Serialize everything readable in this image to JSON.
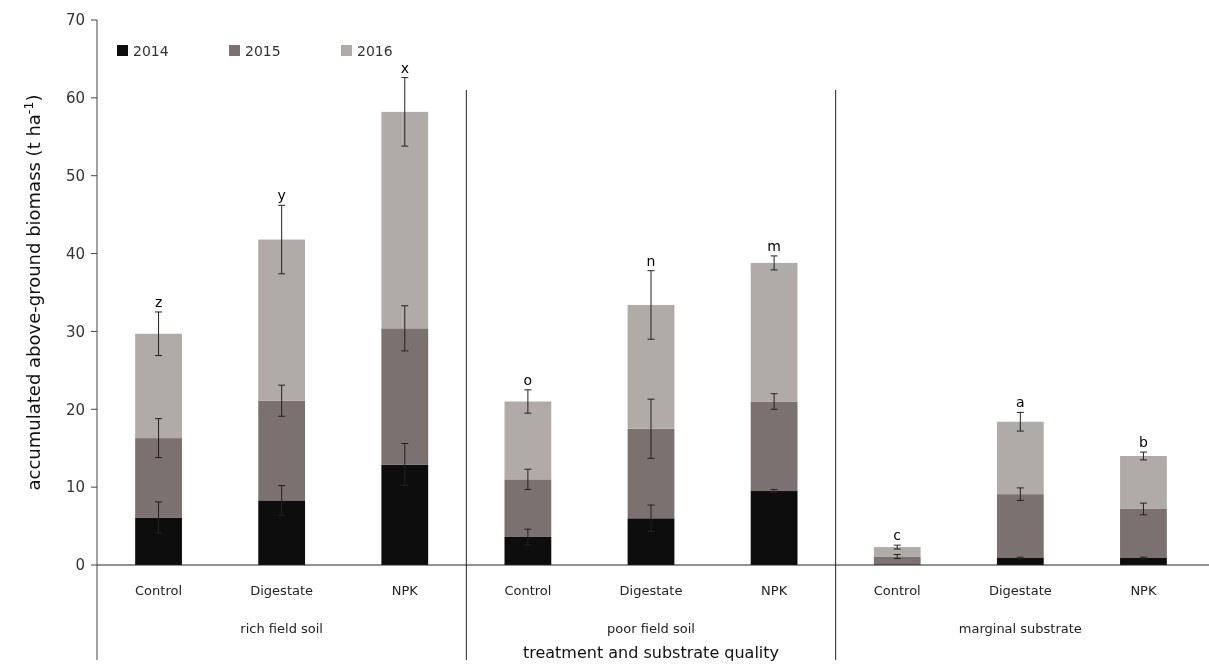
{
  "chart_data": {
    "type": "bar",
    "stacked": true,
    "xlabel": "treatment and substrate quality",
    "ylabel": "accumulated above-ground biomass (t ha$^{-1}$)",
    "categories": [
      "Control",
      "Digestate",
      "NPK",
      "Control",
      "Digestate",
      "NPK",
      "Control",
      "Digestate",
      "NPK"
    ],
    "ylim": [
      0,
      70
    ],
    "yticks": [
      0,
      10,
      20,
      30,
      40,
      50,
      60,
      70
    ],
    "grid": false,
    "legend": "top left",
    "annotations": [
      "rich field soil",
      "poor field soil",
      "marginal substrate"
    ],
    "series": [
      {
        "name": "2014",
        "color": "#0d0d0d",
        "values": [
          6.1,
          8.3,
          12.9,
          3.6,
          6.0,
          9.5,
          0,
          0.9,
          0.9
        ],
        "errors": [
          2.0,
          1.9,
          2.7,
          1.0,
          1.7,
          0.2,
          null,
          0.1,
          0.1
        ]
      },
      {
        "name": "2015",
        "color": "#7a7170",
        "values": [
          10.2,
          12.8,
          17.5,
          7.4,
          11.5,
          11.5,
          1.1,
          8.2,
          6.3
        ],
        "errors": [
          2.5,
          2.0,
          2.9,
          1.3,
          3.8,
          1.0,
          0.25,
          0.8,
          0.75
        ]
      },
      {
        "name": "2016",
        "color": "#b0aba9",
        "values": [
          13.4,
          20.7,
          27.8,
          10.0,
          15.9,
          17.8,
          1.2,
          9.3,
          6.8
        ],
        "errors": [
          2.8,
          4.4,
          4.4,
          1.5,
          4.4,
          0.9,
          0.25,
          1.2,
          0.5
        ],
        "value_labels": [
          "z",
          "y",
          "x",
          "o",
          "n",
          "m",
          "c",
          "a",
          "b"
        ]
      }
    ]
  }
}
